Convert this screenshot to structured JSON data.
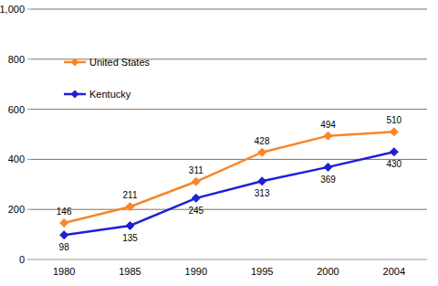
{
  "chart_data": {
    "type": "line",
    "categories": [
      "1980",
      "1985",
      "1990",
      "1995",
      "2000",
      "2004"
    ],
    "series": [
      {
        "name": "United States",
        "color": "#f7862a",
        "marker": "diamond",
        "values": [
          146,
          211,
          311,
          428,
          494,
          510
        ]
      },
      {
        "name": "Kentucky",
        "color": "#1f1fd6",
        "marker": "diamond",
        "values": [
          98,
          135,
          245,
          313,
          369,
          430
        ]
      }
    ],
    "ylim": [
      0,
      1000
    ],
    "yticks": [
      0,
      200,
      400,
      600,
      800,
      {
        "value": 1000,
        "label": "1,000"
      }
    ],
    "grid": true,
    "legend": "top-left",
    "data_labels": true
  }
}
